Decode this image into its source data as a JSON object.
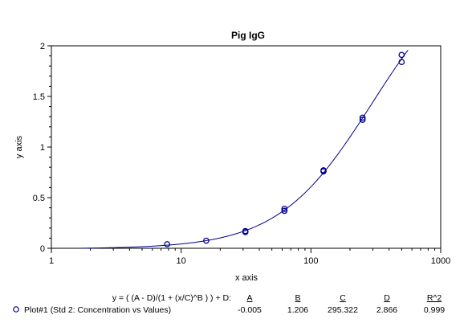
{
  "chart_data": {
    "type": "scatter",
    "title": "Pig IgG",
    "xlabel": "x axis",
    "ylabel": "y axis",
    "xscale": "log",
    "xlim": [
      1,
      1000
    ],
    "ylim": [
      0,
      2
    ],
    "x_ticks": [
      "1",
      "10",
      "100",
      "1000"
    ],
    "y_ticks": [
      "0",
      "0.5",
      "1",
      "1.5",
      "2"
    ],
    "series": [
      {
        "name": "Plot#1 (Std 2: Concentration vs Values)",
        "color": "#00008b",
        "points": [
          {
            "x": 7.8,
            "y": 0.04
          },
          {
            "x": 15.6,
            "y": 0.075
          },
          {
            "x": 31.25,
            "y": 0.16
          },
          {
            "x": 31.25,
            "y": 0.17
          },
          {
            "x": 62.5,
            "y": 0.37
          },
          {
            "x": 62.5,
            "y": 0.39
          },
          {
            "x": 125,
            "y": 0.76
          },
          {
            "x": 125,
            "y": 0.77
          },
          {
            "x": 250,
            "y": 1.27
          },
          {
            "x": 250,
            "y": 1.29
          },
          {
            "x": 500,
            "y": 1.84
          },
          {
            "x": 500,
            "y": 1.91
          }
        ],
        "fit": {
          "A": -0.005,
          "B": 1.206,
          "C": 295.322,
          "D": 2.866,
          "x_range": [
            1.7,
            560
          ]
        }
      }
    ],
    "legend": {
      "equation": "y = ( (A - D)/(1 + (x/C)^B ) ) + D:",
      "headers": [
        "A",
        "B",
        "C",
        "D",
        "R^2"
      ],
      "values": [
        "-0.005",
        "1.206",
        "295.322",
        "2.866",
        "0.999"
      ]
    },
    "grid": false
  }
}
